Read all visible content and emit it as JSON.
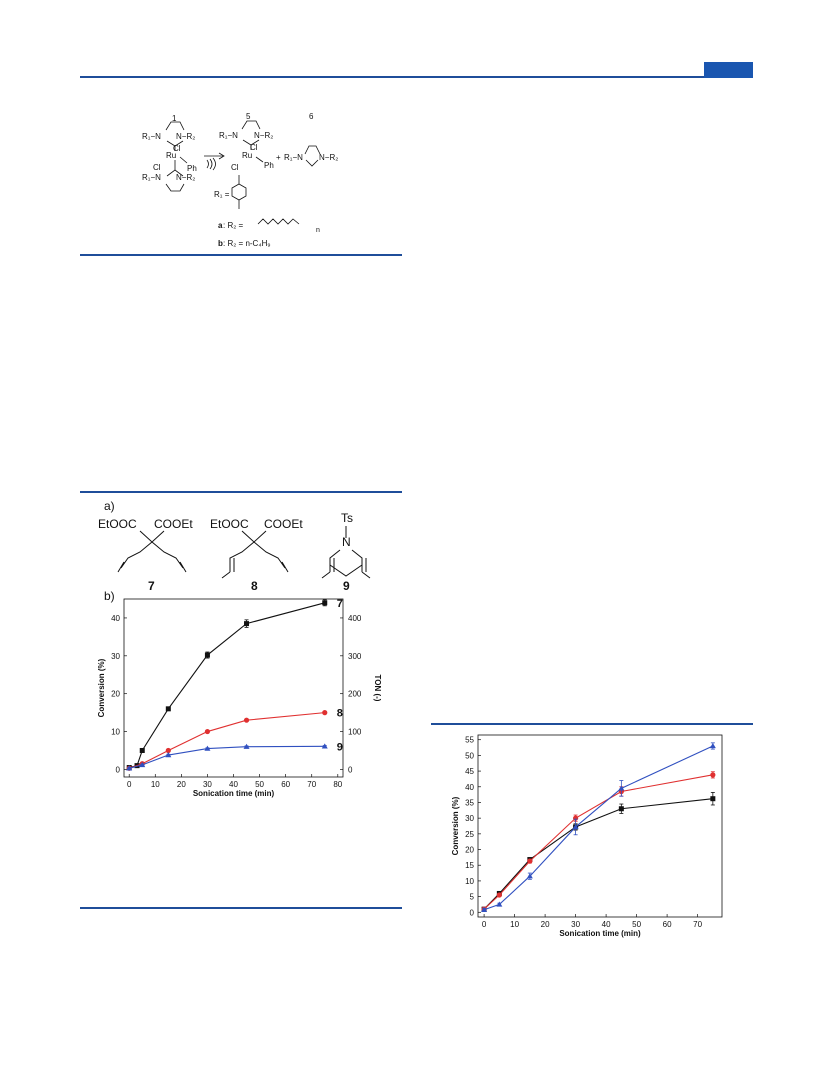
{
  "scheme1": {
    "label_1": "1",
    "label_5": "5",
    "label_6": "6",
    "r1n_left": "R₁−N",
    "nr2_right": "N−R₂",
    "cl": "Cl",
    "ru": "Ru",
    "ph": "Ph",
    "plus": "+",
    "r1_def": "R₁ =",
    "a_label": "a",
    "a_def": ": R₂ =",
    "n_sub": "n",
    "b_label": "b",
    "b_def": ": R₂ = n-C₄H₉"
  },
  "figure_a": {
    "panel_a": "a)",
    "ester_left": "EtOOC",
    "ester_right": "COOEt",
    "ts": "Ts",
    "n": "N",
    "label_7": "7",
    "label_8": "8",
    "label_9": "9"
  },
  "chart_data": [
    {
      "type": "line",
      "panel": "b)",
      "xlabel": "Sonication time (min)",
      "ylabel": "Conversion (%)",
      "y2label": "TON (-)",
      "xlim": [
        -2,
        82
      ],
      "ylim": [
        -2,
        45
      ],
      "y2lim": [
        -20,
        450
      ],
      "xticks": [
        0,
        10,
        20,
        30,
        40,
        50,
        60,
        70,
        80
      ],
      "yticks": [
        0,
        10,
        20,
        30,
        40
      ],
      "y2ticks": [
        0,
        100,
        200,
        300,
        400
      ],
      "series": [
        {
          "name": "7",
          "color": "#111111",
          "marker": "square",
          "x": [
            0,
            3,
            5,
            15,
            30,
            45,
            75
          ],
          "y": [
            0.5,
            1.0,
            5.0,
            16.0,
            30.2,
            38.5,
            44.0
          ],
          "err": [
            0.3,
            0.3,
            0.4,
            0.4,
            0.8,
            1.0,
            0.8
          ]
        },
        {
          "name": "8",
          "color": "#e03030",
          "marker": "circle",
          "x": [
            0,
            5,
            15,
            30,
            45,
            75
          ],
          "y": [
            0.3,
            1.5,
            5.0,
            10.0,
            13.0,
            15.0
          ],
          "err": [
            0.2,
            0.2,
            0.3,
            0.3,
            0.3,
            0.3
          ]
        },
        {
          "name": "9",
          "color": "#3050c0",
          "marker": "triangle",
          "x": [
            0,
            5,
            15,
            30,
            45,
            75
          ],
          "y": [
            0.3,
            1.2,
            3.8,
            5.5,
            6.0,
            6.1
          ],
          "err": [
            0.2,
            0.2,
            0.2,
            0.2,
            0.2,
            0.2
          ]
        }
      ]
    },
    {
      "type": "line",
      "xlabel": "Sonication time (min)",
      "ylabel": "Conversion (%)",
      "xlim": [
        -2,
        78
      ],
      "ylim": [
        -1.5,
        56.5
      ],
      "xticks": [
        0,
        10,
        20,
        30,
        40,
        50,
        60,
        70
      ],
      "yticks": [
        0,
        5,
        10,
        15,
        20,
        25,
        30,
        35,
        40,
        45,
        50,
        55
      ],
      "series": [
        {
          "color": "#111111",
          "marker": "square",
          "x": [
            0,
            5,
            15,
            30,
            45,
            75
          ],
          "y": [
            1.0,
            6.0,
            16.8,
            27.2,
            33.0,
            36.2
          ],
          "err": [
            0.4,
            0.5,
            0.6,
            1.0,
            1.5,
            2.0
          ]
        },
        {
          "color": "#e03030",
          "marker": "circle",
          "x": [
            0,
            5,
            15,
            30,
            45,
            75
          ],
          "y": [
            1.0,
            5.5,
            16.3,
            30.0,
            38.5,
            43.8
          ],
          "err": [
            0.4,
            0.5,
            0.6,
            1.0,
            1.5,
            1.0
          ]
        },
        {
          "color": "#3050c0",
          "marker": "triangle",
          "x": [
            0,
            5,
            15,
            30,
            45,
            75
          ],
          "y": [
            0.8,
            2.5,
            11.5,
            27.2,
            39.5,
            53.0
          ],
          "err": [
            0.4,
            0.4,
            1.0,
            2.5,
            2.5,
            1.0
          ]
        }
      ]
    }
  ]
}
